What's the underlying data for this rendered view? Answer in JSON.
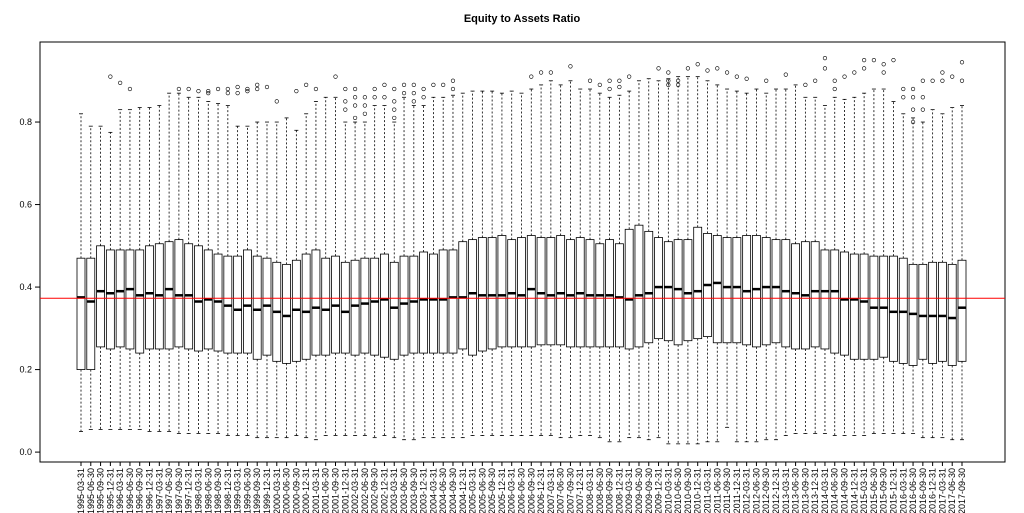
{
  "chart_data": {
    "type": "boxplot",
    "title": "Equity to Assets Ratio",
    "categories": [
      "1995-03-31",
      "1995-06-30",
      "1995-09-30",
      "1995-12-31",
      "1996-03-31",
      "1996-06-30",
      "1996-09-30",
      "1996-12-31",
      "1997-03-31",
      "1997-06-30",
      "1997-09-30",
      "1997-12-31",
      "1998-03-31",
      "1998-06-30",
      "1998-09-30",
      "1998-12-31",
      "1999-03-31",
      "1999-06-30",
      "1999-09-30",
      "1999-12-31",
      "2000-03-31",
      "2000-06-30",
      "2000-09-30",
      "2000-12-31",
      "2001-03-31",
      "2001-06-30",
      "2001-09-30",
      "2001-12-31",
      "2002-03-31",
      "2002-06-30",
      "2002-09-30",
      "2002-12-31",
      "2003-03-31",
      "2003-06-30",
      "2003-09-30",
      "2003-12-31",
      "2004-03-31",
      "2004-06-30",
      "2004-09-30",
      "2004-12-31",
      "2005-03-31",
      "2005-06-30",
      "2005-09-30",
      "2005-12-31",
      "2006-03-31",
      "2006-06-30",
      "2006-09-30",
      "2006-12-31",
      "2007-03-31",
      "2007-06-30",
      "2007-09-30",
      "2007-12-31",
      "2008-03-31",
      "2008-06-30",
      "2008-09-30",
      "2008-12-31",
      "2009-03-31",
      "2009-06-30",
      "2009-09-30",
      "2009-12-31",
      "2010-03-31",
      "2010-06-30",
      "2010-09-30",
      "2010-12-31",
      "2011-03-31",
      "2011-06-30",
      "2011-09-30",
      "2011-12-31",
      "2012-03-31",
      "2012-06-30",
      "2012-09-30",
      "2012-12-31",
      "2013-03-31",
      "2013-06-30",
      "2013-09-30",
      "2013-12-31",
      "2014-03-31",
      "2014-06-30",
      "2014-09-30",
      "2014-12-31",
      "2015-03-31",
      "2015-06-30",
      "2015-09-30",
      "2015-12-31",
      "2016-03-31",
      "2016-06-30",
      "2016-09-30",
      "2016-12-31",
      "2017-03-31",
      "2017-06-30",
      "2017-09-30"
    ],
    "min": [
      0.05,
      0.055,
      0.055,
      0.055,
      0.055,
      0.055,
      0.055,
      0.05,
      0.05,
      0.05,
      0.045,
      0.045,
      0.045,
      0.045,
      0.045,
      0.04,
      0.04,
      0.04,
      0.035,
      0.035,
      0.035,
      0.035,
      0.04,
      0.035,
      0.03,
      0.04,
      0.04,
      0.04,
      0.04,
      0.04,
      0.035,
      0.04,
      0.035,
      0.03,
      0.03,
      0.035,
      0.035,
      0.035,
      0.035,
      0.035,
      0.04,
      0.04,
      0.04,
      0.04,
      0.04,
      0.04,
      0.04,
      0.04,
      0.04,
      0.035,
      0.035,
      0.04,
      0.04,
      0.035,
      0.025,
      0.025,
      0.035,
      0.035,
      0.03,
      0.035,
      0.02,
      0.02,
      0.02,
      0.02,
      0.025,
      0.025,
      0.06,
      0.025,
      0.025,
      0.025,
      0.03,
      0.03,
      0.04,
      0.045,
      0.045,
      0.045,
      0.045,
      0.04,
      0.04,
      0.04,
      0.04,
      0.045,
      0.045,
      0.045,
      0.045,
      0.045,
      0.035,
      0.035,
      0.035,
      0.03,
      0.03
    ],
    "q1": [
      0.2,
      0.2,
      0.255,
      0.25,
      0.255,
      0.25,
      0.24,
      0.25,
      0.25,
      0.25,
      0.255,
      0.25,
      0.245,
      0.25,
      0.245,
      0.24,
      0.24,
      0.24,
      0.225,
      0.235,
      0.22,
      0.215,
      0.22,
      0.225,
      0.235,
      0.235,
      0.24,
      0.24,
      0.235,
      0.24,
      0.235,
      0.23,
      0.225,
      0.235,
      0.24,
      0.24,
      0.24,
      0.24,
      0.24,
      0.25,
      0.235,
      0.245,
      0.25,
      0.255,
      0.255,
      0.255,
      0.255,
      0.26,
      0.26,
      0.26,
      0.255,
      0.255,
      0.255,
      0.255,
      0.255,
      0.255,
      0.25,
      0.255,
      0.265,
      0.275,
      0.27,
      0.26,
      0.27,
      0.275,
      0.28,
      0.265,
      0.265,
      0.265,
      0.26,
      0.255,
      0.26,
      0.265,
      0.255,
      0.25,
      0.25,
      0.255,
      0.25,
      0.24,
      0.235,
      0.225,
      0.225,
      0.225,
      0.23,
      0.22,
      0.215,
      0.21,
      0.225,
      0.215,
      0.22,
      0.21,
      0.22
    ],
    "median": [
      0.375,
      0.365,
      0.39,
      0.385,
      0.39,
      0.395,
      0.38,
      0.385,
      0.38,
      0.395,
      0.38,
      0.38,
      0.365,
      0.37,
      0.365,
      0.355,
      0.345,
      0.355,
      0.345,
      0.355,
      0.34,
      0.33,
      0.345,
      0.34,
      0.35,
      0.345,
      0.355,
      0.34,
      0.355,
      0.36,
      0.365,
      0.37,
      0.35,
      0.36,
      0.365,
      0.37,
      0.37,
      0.37,
      0.375,
      0.375,
      0.385,
      0.38,
      0.38,
      0.38,
      0.385,
      0.38,
      0.395,
      0.385,
      0.38,
      0.385,
      0.38,
      0.385,
      0.38,
      0.38,
      0.38,
      0.375,
      0.37,
      0.38,
      0.385,
      0.4,
      0.4,
      0.395,
      0.385,
      0.39,
      0.405,
      0.41,
      0.4,
      0.4,
      0.39,
      0.395,
      0.4,
      0.4,
      0.39,
      0.385,
      0.38,
      0.39,
      0.39,
      0.39,
      0.37,
      0.37,
      0.365,
      0.35,
      0.35,
      0.34,
      0.34,
      0.335,
      0.33,
      0.33,
      0.33,
      0.325,
      0.35
    ],
    "q3": [
      0.47,
      0.47,
      0.5,
      0.49,
      0.49,
      0.49,
      0.49,
      0.5,
      0.505,
      0.51,
      0.515,
      0.505,
      0.5,
      0.49,
      0.48,
      0.475,
      0.475,
      0.49,
      0.475,
      0.47,
      0.46,
      0.455,
      0.465,
      0.48,
      0.49,
      0.47,
      0.475,
      0.46,
      0.465,
      0.47,
      0.47,
      0.48,
      0.46,
      0.475,
      0.475,
      0.485,
      0.48,
      0.49,
      0.49,
      0.51,
      0.515,
      0.52,
      0.52,
      0.525,
      0.515,
      0.52,
      0.525,
      0.52,
      0.52,
      0.525,
      0.515,
      0.52,
      0.515,
      0.505,
      0.515,
      0.505,
      0.54,
      0.55,
      0.535,
      0.52,
      0.51,
      0.515,
      0.515,
      0.545,
      0.53,
      0.525,
      0.52,
      0.52,
      0.525,
      0.525,
      0.52,
      0.515,
      0.515,
      0.505,
      0.51,
      0.51,
      0.49,
      0.49,
      0.485,
      0.48,
      0.48,
      0.475,
      0.475,
      0.475,
      0.47,
      0.455,
      0.455,
      0.46,
      0.46,
      0.455,
      0.465
    ],
    "max": [
      0.82,
      0.79,
      0.79,
      0.775,
      0.83,
      0.83,
      0.835,
      0.835,
      0.84,
      0.87,
      0.87,
      0.86,
      0.86,
      0.85,
      0.845,
      0.84,
      0.79,
      0.79,
      0.8,
      0.8,
      0.8,
      0.81,
      0.78,
      0.82,
      0.85,
      0.86,
      0.86,
      0.8,
      0.8,
      0.8,
      0.84,
      0.84,
      0.8,
      0.86,
      0.84,
      0.84,
      0.86,
      0.86,
      0.865,
      0.87,
      0.875,
      0.875,
      0.875,
      0.87,
      0.875,
      0.87,
      0.88,
      0.89,
      0.9,
      0.89,
      0.9,
      0.88,
      0.88,
      0.87,
      0.86,
      0.865,
      0.875,
      0.9,
      0.905,
      0.9,
      0.905,
      0.91,
      0.91,
      0.91,
      0.9,
      0.89,
      0.88,
      0.875,
      0.87,
      0.88,
      0.87,
      0.88,
      0.88,
      0.89,
      0.86,
      0.86,
      0.84,
      0.86,
      0.855,
      0.86,
      0.87,
      0.88,
      0.88,
      0.85,
      0.82,
      0.81,
      0.8,
      0.83,
      0.82,
      0.835,
      0.84
    ],
    "outliers": [
      [],
      [],
      [],
      [
        0.91
      ],
      [
        0.895
      ],
      [
        0.88
      ],
      [],
      [],
      [],
      [],
      [
        0.88
      ],
      [
        0.88
      ],
      [
        0.875
      ],
      [
        0.87,
        0.875
      ],
      [
        0.88
      ],
      [
        0.87,
        0.88
      ],
      [
        0.87,
        0.885
      ],
      [
        0.88,
        0.875
      ],
      [
        0.89,
        0.88
      ],
      [
        0.885
      ],
      [
        0.85
      ],
      [],
      [
        0.875
      ],
      [
        0.89
      ],
      [
        0.88
      ],
      [],
      [
        0.91
      ],
      [
        0.83,
        0.85,
        0.88
      ],
      [
        0.81,
        0.84,
        0.86,
        0.88
      ],
      [
        0.82,
        0.84,
        0.86
      ],
      [
        0.86,
        0.88
      ],
      [
        0.86,
        0.89
      ],
      [
        0.81,
        0.83,
        0.85,
        0.88
      ],
      [
        0.87,
        0.89
      ],
      [
        0.85,
        0.87,
        0.89
      ],
      [
        0.86,
        0.88
      ],
      [
        0.89
      ],
      [
        0.89
      ],
      [
        0.88,
        0.9
      ],
      [],
      [],
      [],
      [],
      [],
      [],
      [],
      [
        0.91
      ],
      [
        0.92
      ],
      [
        0.92
      ],
      [],
      [
        0.935
      ],
      [],
      [
        0.9
      ],
      [
        0.89
      ],
      [
        0.88,
        0.9
      ],
      [
        0.885,
        0.9
      ],
      [
        0.91
      ],
      [],
      [],
      [
        0.93
      ],
      [
        0.92,
        0.9,
        0.89
      ],
      [
        0.9,
        0.89
      ],
      [
        0.93
      ],
      [
        0.94
      ],
      [
        0.925
      ],
      [
        0.93
      ],
      [
        0.92
      ],
      [
        0.91
      ],
      [
        0.905
      ],
      [],
      [
        0.9
      ],
      [],
      [
        0.915
      ],
      [],
      [
        0.89
      ],
      [
        0.9
      ],
      [
        0.955,
        0.93
      ],
      [
        0.88,
        0.9
      ],
      [
        0.91
      ],
      [
        0.92
      ],
      [
        0.93,
        0.95
      ],
      [
        0.95
      ],
      [
        0.94,
        0.92
      ],
      [
        0.95
      ],
      [
        0.86,
        0.88
      ],
      [
        0.8,
        0.83,
        0.86,
        0.88
      ],
      [
        0.83,
        0.86,
        0.9
      ],
      [
        0.9
      ],
      [
        0.9,
        0.92
      ],
      [
        0.91
      ],
      [
        0.945,
        0.9
      ]
    ],
    "color": "#000000",
    "hline": 0.373,
    "hline_color": "#ff0000",
    "ylim": [
      -0.024,
      0.994
    ],
    "yticks": [
      {
        "value": 0,
        "label": "0.0"
      },
      0.2,
      0.4,
      0.6,
      0.8
    ]
  }
}
